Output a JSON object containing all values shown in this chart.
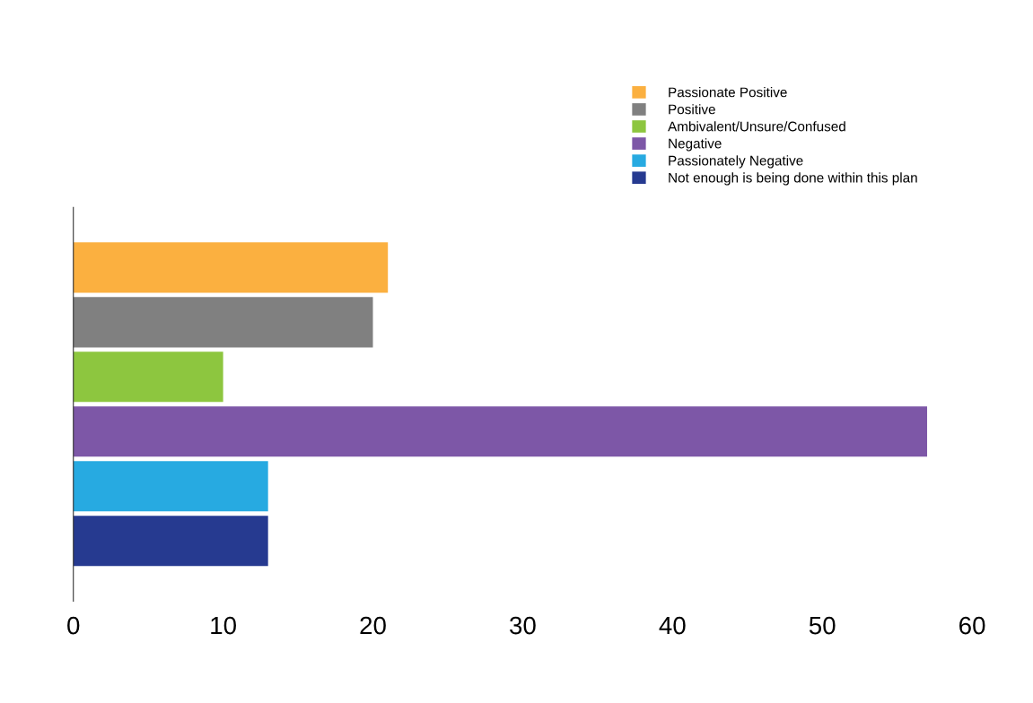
{
  "chart_data": {
    "type": "bar",
    "orientation": "horizontal",
    "categories": [
      null,
      null,
      null,
      null,
      null,
      null
    ],
    "series": [
      {
        "name": "Passionate Positive",
        "color": "#fbb040",
        "values": [
          21,
          null,
          null,
          null,
          null,
          null
        ]
      },
      {
        "name": "Positive",
        "color": "#808080",
        "values": [
          null,
          20,
          null,
          null,
          null,
          null
        ]
      },
      {
        "name": "Ambivalent/Unsure/Confused",
        "color": "#8dc63f",
        "values": [
          null,
          null,
          10,
          null,
          null,
          null
        ]
      },
      {
        "name": "Negative",
        "color": "#7d57a7",
        "values": [
          null,
          null,
          null,
          57,
          null,
          null
        ]
      },
      {
        "name": "Passionately Negative",
        "color": "#27aae1",
        "values": [
          null,
          null,
          null,
          null,
          13,
          null
        ]
      },
      {
        "name": "Not enough is being done within this plan",
        "color": "#263a90",
        "values": [
          null,
          null,
          null,
          null,
          null,
          13
        ]
      }
    ],
    "xlim": [
      0,
      60
    ],
    "xticks": [
      0,
      10,
      20,
      30,
      40,
      50,
      60
    ],
    "tick_labels": "x",
    "grid": false,
    "legend": "top right"
  }
}
